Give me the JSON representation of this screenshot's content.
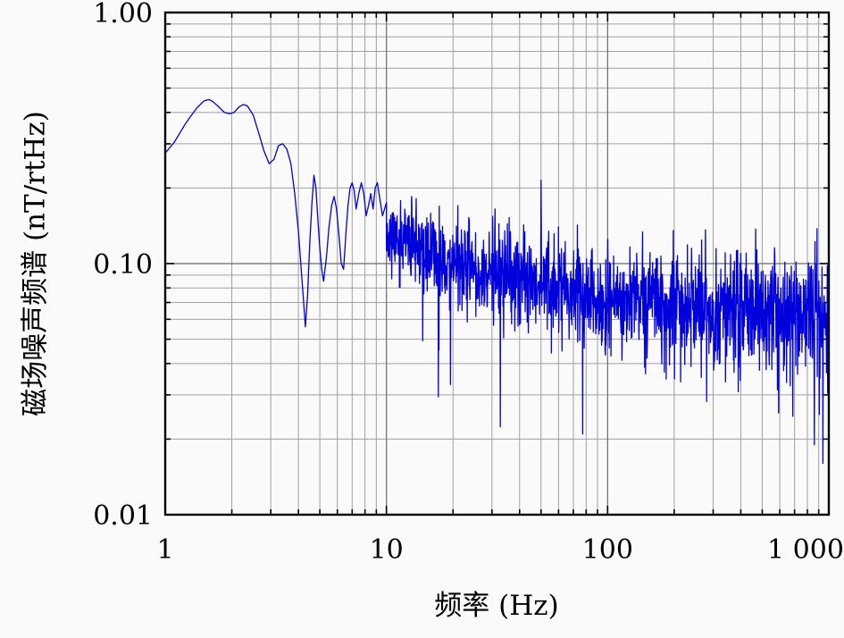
{
  "chart_data": {
    "type": "line",
    "xlabel": "频率 (Hz)",
    "ylabel": "磁场噪声频谱 (nT/rtHz)",
    "xscale": "log",
    "yscale": "log",
    "xlim": [
      1,
      1000
    ],
    "ylim": [
      0.01,
      1.0
    ],
    "grid": "major+minor",
    "legend": "none",
    "x_ticks": [
      {
        "value": 1,
        "label": "1"
      },
      {
        "value": 10,
        "label": "10"
      },
      {
        "value": 100,
        "label": "100"
      },
      {
        "value": 1000,
        "label": "1 000"
      }
    ],
    "y_ticks": [
      {
        "value": 0.01,
        "label": "0.01"
      },
      {
        "value": 0.1,
        "label": "0.10"
      },
      {
        "value": 1.0,
        "label": "1.00"
      }
    ],
    "line_color": "#0000dd",
    "series_name": "magnetic-field-noise-spectrum",
    "low_freq_points": [
      [
        1.0,
        0.275
      ],
      [
        1.05,
        0.29
      ],
      [
        1.1,
        0.305
      ],
      [
        1.15,
        0.325
      ],
      [
        1.22,
        0.355
      ],
      [
        1.3,
        0.385
      ],
      [
        1.4,
        0.42
      ],
      [
        1.5,
        0.445
      ],
      [
        1.58,
        0.45
      ],
      [
        1.65,
        0.44
      ],
      [
        1.75,
        0.42
      ],
      [
        1.85,
        0.4
      ],
      [
        1.95,
        0.395
      ],
      [
        2.05,
        0.4
      ],
      [
        2.15,
        0.42
      ],
      [
        2.25,
        0.43
      ],
      [
        2.35,
        0.425
      ],
      [
        2.5,
        0.39
      ],
      [
        2.65,
        0.33
      ],
      [
        2.8,
        0.28
      ],
      [
        2.95,
        0.25
      ],
      [
        3.1,
        0.26
      ],
      [
        3.25,
        0.295
      ],
      [
        3.4,
        0.3
      ],
      [
        3.55,
        0.285
      ],
      [
        3.7,
        0.25
      ],
      [
        3.85,
        0.19
      ],
      [
        4.0,
        0.135
      ],
      [
        4.1,
        0.1
      ],
      [
        4.2,
        0.075
      ],
      [
        4.3,
        0.056
      ],
      [
        4.4,
        0.075
      ],
      [
        4.5,
        0.12
      ],
      [
        4.6,
        0.17
      ],
      [
        4.7,
        0.225
      ],
      [
        4.8,
        0.2
      ],
      [
        4.9,
        0.15
      ],
      [
        5.0,
        0.115
      ],
      [
        5.1,
        0.095
      ],
      [
        5.2,
        0.085
      ],
      [
        5.35,
        0.105
      ],
      [
        5.5,
        0.14
      ],
      [
        5.65,
        0.17
      ],
      [
        5.8,
        0.185
      ],
      [
        5.95,
        0.165
      ],
      [
        6.1,
        0.13
      ],
      [
        6.25,
        0.1
      ],
      [
        6.4,
        0.095
      ],
      [
        6.55,
        0.13
      ],
      [
        6.7,
        0.17
      ],
      [
        6.85,
        0.2
      ],
      [
        7.0,
        0.21
      ],
      [
        7.15,
        0.195
      ],
      [
        7.3,
        0.165
      ],
      [
        7.5,
        0.19
      ],
      [
        7.7,
        0.21
      ],
      [
        7.9,
        0.19
      ],
      [
        8.1,
        0.155
      ],
      [
        8.3,
        0.17
      ],
      [
        8.5,
        0.19
      ],
      [
        8.7,
        0.165
      ],
      [
        8.9,
        0.2
      ],
      [
        9.1,
        0.21
      ],
      [
        9.3,
        0.185
      ],
      [
        9.6,
        0.155
      ],
      [
        10.0,
        0.175
      ]
    ],
    "noise": {
      "start_f": 10,
      "end_f": 1000,
      "samples": 1500,
      "seed": 11,
      "envelope": [
        [
          10,
          0.13,
          0.07
        ],
        [
          14,
          0.115,
          0.075
        ],
        [
          20,
          0.1,
          0.085
        ],
        [
          30,
          0.09,
          0.09
        ],
        [
          50,
          0.082,
          0.1
        ],
        [
          100,
          0.073,
          0.105
        ],
        [
          200,
          0.068,
          0.115
        ],
        [
          400,
          0.065,
          0.125
        ],
        [
          700,
          0.061,
          0.135
        ],
        [
          1000,
          0.058,
          0.145
        ]
      ],
      "deep_spike_prob": 0.006,
      "deep_spike_exp_min": 0.35,
      "deep_spike_exp_max": 0.6,
      "clamp": [
        0.013,
        0.9
      ]
    },
    "spikes": [
      [
        13,
        0.185
      ],
      [
        19.5,
        0.033
      ],
      [
        21,
        0.17
      ],
      [
        31,
        0.165
      ],
      [
        50,
        0.215
      ],
      [
        60,
        0.14
      ],
      [
        100,
        0.125
      ],
      [
        240,
        0.115
      ],
      [
        400,
        0.11
      ],
      [
        860,
        0.019
      ],
      [
        940,
        0.016
      ]
    ]
  }
}
